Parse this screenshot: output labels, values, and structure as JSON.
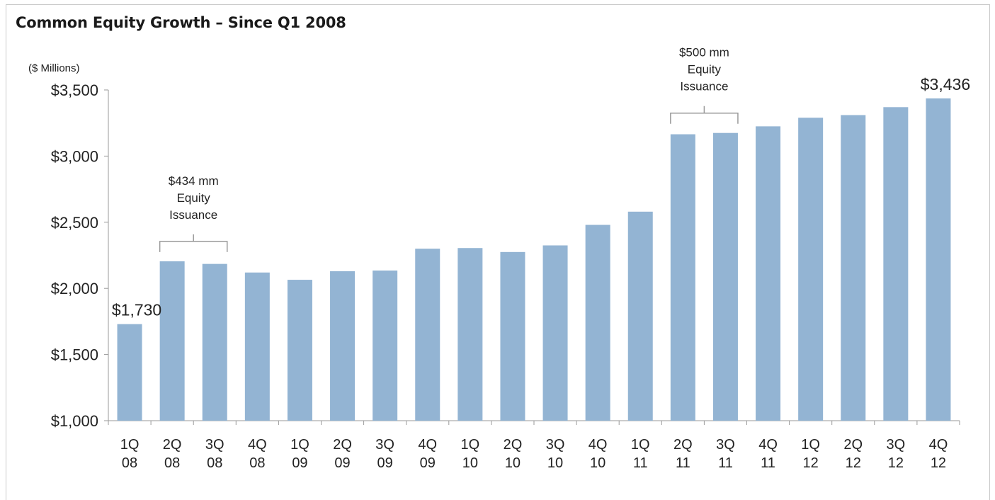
{
  "page": {
    "title": "Common Equity Growth – Since Q1 2008"
  },
  "chart_data": {
    "type": "bar",
    "title": "Common Equity Growth – Since Q1 2008",
    "ylabel": "($ Millions)",
    "xlabel": "",
    "ylim": [
      1000,
      3500
    ],
    "yticks": [
      1000,
      1500,
      2000,
      2500,
      3000,
      3500
    ],
    "ytick_labels": [
      "$1,000",
      "$1,500",
      "$2,000",
      "$2,500",
      "$3,000",
      "$3,500"
    ],
    "grid": false,
    "bar_color": "#93b4d3",
    "categories": [
      [
        "1Q",
        "08"
      ],
      [
        "2Q",
        "08"
      ],
      [
        "3Q",
        "08"
      ],
      [
        "4Q",
        "08"
      ],
      [
        "1Q",
        "09"
      ],
      [
        "2Q",
        "09"
      ],
      [
        "3Q",
        "09"
      ],
      [
        "4Q",
        "09"
      ],
      [
        "1Q",
        "10"
      ],
      [
        "2Q",
        "10"
      ],
      [
        "3Q",
        "10"
      ],
      [
        "4Q",
        "10"
      ],
      [
        "1Q",
        "11"
      ],
      [
        "2Q",
        "11"
      ],
      [
        "3Q",
        "11"
      ],
      [
        "4Q",
        "11"
      ],
      [
        "1Q",
        "12"
      ],
      [
        "2Q",
        "12"
      ],
      [
        "3Q",
        "12"
      ],
      [
        "4Q",
        "12"
      ]
    ],
    "values": [
      1730,
      2205,
      2185,
      2120,
      2065,
      2130,
      2135,
      2300,
      2305,
      2275,
      2325,
      2480,
      2580,
      3165,
      3175,
      3225,
      3290,
      3310,
      3370,
      3436
    ],
    "data_labels": [
      {
        "index": 0,
        "text": "$1,730"
      },
      {
        "index": 19,
        "text": "$3,436"
      }
    ],
    "annotations": [
      {
        "lines": [
          "$434 mm",
          "Equity",
          "Issuance"
        ],
        "from_index": 1,
        "to_index": 2
      },
      {
        "lines": [
          "$500 mm",
          "Equity",
          "Issuance"
        ],
        "from_index": 13,
        "to_index": 14
      }
    ]
  }
}
